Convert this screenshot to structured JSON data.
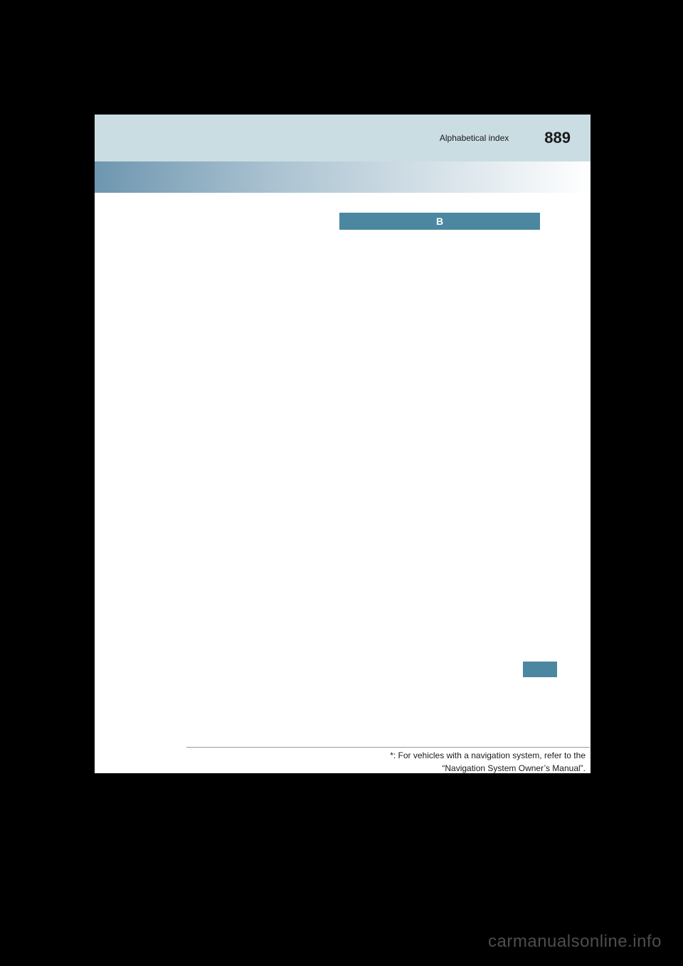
{
  "header": {
    "section_label": "Alphabetical index",
    "page_number": "889"
  },
  "letter_tab": "B",
  "footnote": {
    "line1": "*: For vehicles with a navigation system, refer to the",
    "line2": "“Navigation System Owner’s Manual”."
  },
  "watermark": "carmanualsonline.info",
  "colors": {
    "background": "#000000",
    "page_bg": "#ffffff",
    "header_bg": "#cadde2",
    "tab_bg": "#4b87a0",
    "tab_text": "#ffffff",
    "text": "#1a1a1a",
    "watermark": "#4d4d4d"
  }
}
